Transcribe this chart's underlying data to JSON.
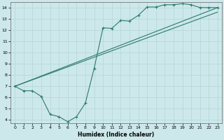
{
  "xlabel": "Humidex (Indice chaleur)",
  "bg_color": "#cce8ea",
  "line_color": "#2d7a6e",
  "grid_color": "#b8d8da",
  "xlim": [
    -0.5,
    23.5
  ],
  "ylim": [
    3.7,
    14.5
  ],
  "xticks": [
    0,
    1,
    2,
    3,
    4,
    5,
    6,
    7,
    8,
    9,
    10,
    11,
    12,
    13,
    14,
    15,
    16,
    17,
    18,
    19,
    20,
    21,
    22,
    23
  ],
  "yticks": [
    4,
    5,
    6,
    7,
    8,
    9,
    10,
    11,
    12,
    13,
    14
  ],
  "line1_x": [
    0,
    1,
    2,
    3,
    4,
    5,
    6,
    7,
    8,
    9,
    10,
    11,
    12,
    13,
    14,
    15,
    16,
    17,
    18,
    19,
    20,
    21,
    22,
    23
  ],
  "line1_y": [
    7.0,
    6.6,
    6.6,
    6.1,
    4.5,
    4.3,
    3.85,
    4.3,
    5.5,
    8.6,
    12.2,
    12.15,
    12.85,
    12.8,
    13.3,
    14.05,
    14.05,
    14.25,
    14.25,
    14.35,
    14.25,
    14.0,
    14.0,
    14.0
  ],
  "line2_x": [
    0,
    23
  ],
  "line2_y": [
    7.0,
    14.0
  ],
  "line3_x": [
    0,
    23
  ],
  "line3_y": [
    7.0,
    13.6
  ]
}
